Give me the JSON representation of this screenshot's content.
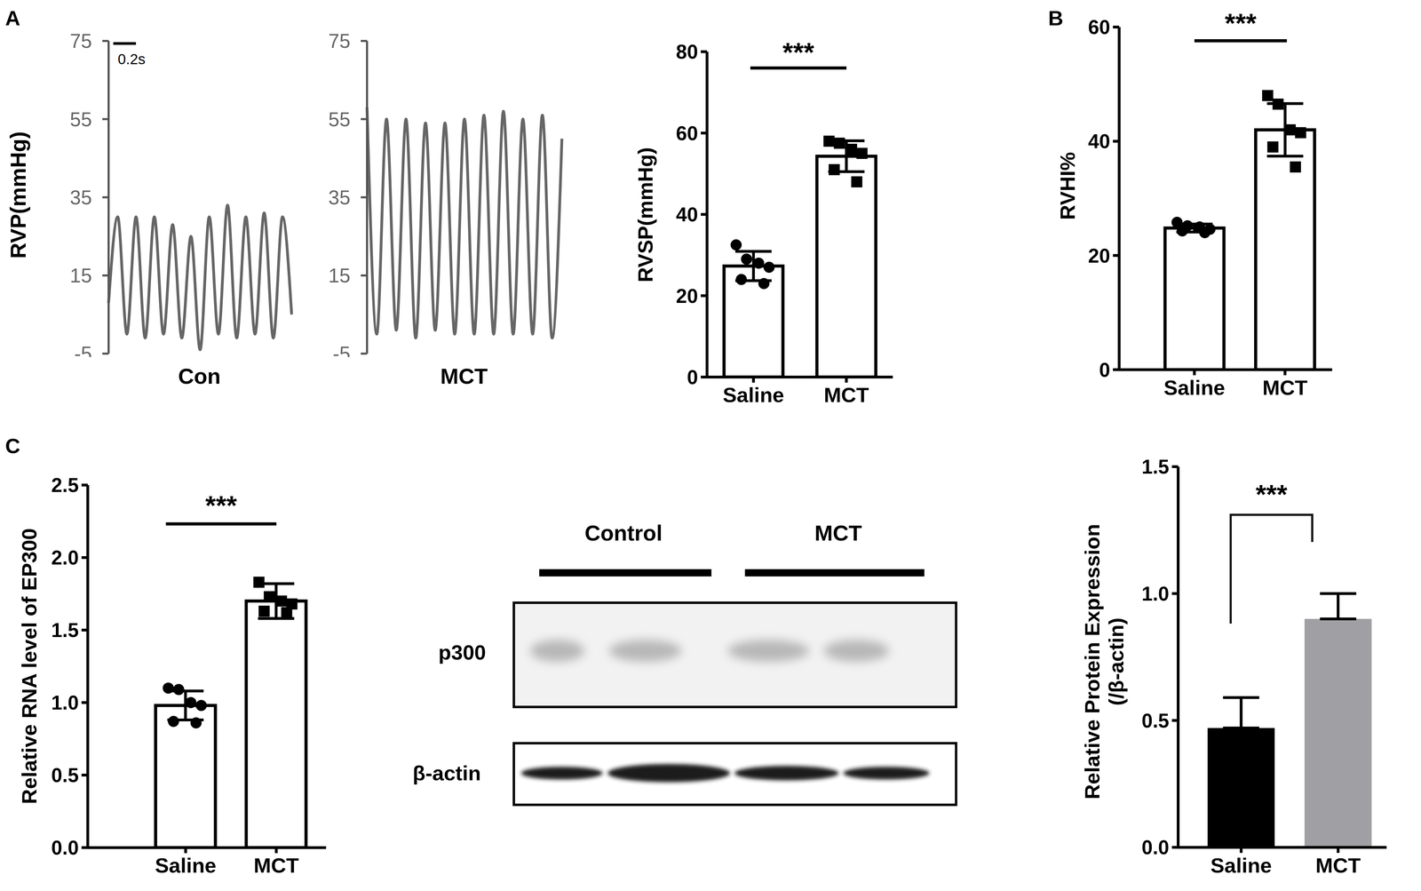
{
  "chart_data": [
    {
      "type": "line",
      "panel": "A",
      "ylabel": "RVP(mmHg)",
      "xlabel": "Con",
      "annotation": "0.2s",
      "color": "#666666",
      "values": [
        8,
        30,
        0,
        30,
        -1,
        30,
        0,
        28,
        -1,
        25,
        -4,
        30,
        0,
        33,
        -1,
        30,
        0,
        31,
        -1,
        30,
        5
      ],
      "ylim": [
        -5,
        75
      ],
      "yticks": [
        -5,
        15,
        35,
        55,
        75
      ],
      "tick_labels": "y"
    },
    {
      "type": "line",
      "xlabel": "MCT",
      "color": "#666666",
      "values": [
        58,
        0,
        55,
        1,
        55,
        -1,
        54,
        1,
        54,
        0,
        55,
        0,
        56,
        0,
        57,
        0,
        55,
        0,
        56,
        -1,
        50
      ],
      "ylim": [
        -5,
        75
      ],
      "yticks": [
        -5,
        15,
        35,
        55,
        75
      ],
      "tick_labels": "y"
    },
    {
      "type": "bar",
      "ylabel": "RVSP(mmHg)",
      "annotation": "***",
      "categories": [
        "Saline",
        "MCT"
      ],
      "values": [
        27.3,
        54.3
      ],
      "errors": [
        3.6,
        3.8
      ],
      "points": [
        {
          "values": [
            32.5,
            29,
            28,
            27,
            24,
            23
          ],
          "marker": "circle"
        },
        {
          "values": [
            58,
            57.5,
            56,
            55,
            51,
            48
          ],
          "marker": "square"
        }
      ],
      "color": "#000000",
      "ylim": [
        0,
        80
      ],
      "yticks": [
        0,
        20,
        40,
        60,
        80
      ]
    },
    {
      "type": "bar",
      "panel": "B",
      "ylabel": "RVHI%",
      "annotation": "***",
      "categories": [
        "Saline",
        "MCT"
      ],
      "values": [
        24.8,
        42
      ],
      "errors": [
        0.7,
        4.6
      ],
      "points": [
        {
          "values": [
            25.8,
            25.2,
            25,
            24.6,
            24.3,
            24
          ],
          "marker": "circle"
        },
        {
          "values": [
            48,
            46.5,
            42,
            41.5,
            39,
            35.5
          ],
          "marker": "square"
        }
      ],
      "color": "#000000",
      "ylim": [
        0,
        60
      ],
      "yticks": [
        0,
        20,
        40,
        60
      ]
    },
    {
      "type": "bar",
      "panel": "C",
      "ylabel": "Relative RNA level of EP300",
      "annotation": "***",
      "categories": [
        "Saline",
        "MCT"
      ],
      "values": [
        0.98,
        1.7
      ],
      "errors": [
        0.1,
        0.12
      ],
      "points": [
        {
          "values": [
            1.1,
            1.09,
            1.0,
            0.98,
            0.87,
            0.86
          ],
          "marker": "circle"
        },
        {
          "values": [
            1.83,
            1.73,
            1.7,
            1.68,
            1.63,
            1.62
          ],
          "marker": "square"
        }
      ],
      "color": "#000000",
      "ylim": [
        0,
        2.5
      ],
      "yticks": [
        {
          "value": 0,
          "label": "0.0"
        },
        0.5,
        {
          "value": 1,
          "label": "1.0"
        },
        1.5,
        {
          "value": 2,
          "label": "2.0"
        },
        2.5
      ]
    },
    {
      "type": "bar",
      "ylabel": [
        "Relative Protein Expression",
        "(/β-actin)"
      ],
      "annotation": "***",
      "categories": [
        "Saline",
        "MCT"
      ],
      "values": [
        0.47,
        0.9
      ],
      "errors": [
        0.12,
        0.1
      ],
      "colors": [
        "#000000",
        "#a0a0a4"
      ],
      "ylim": [
        0,
        1.5
      ],
      "yticks": [
        {
          "value": 0,
          "label": "0.0"
        },
        0.5,
        {
          "value": 1,
          "label": "1.0"
        },
        1.5
      ]
    }
  ],
  "blot": {
    "lanes": [
      "Control",
      "MCT"
    ],
    "rows": [
      "p300",
      "β-actin"
    ]
  }
}
